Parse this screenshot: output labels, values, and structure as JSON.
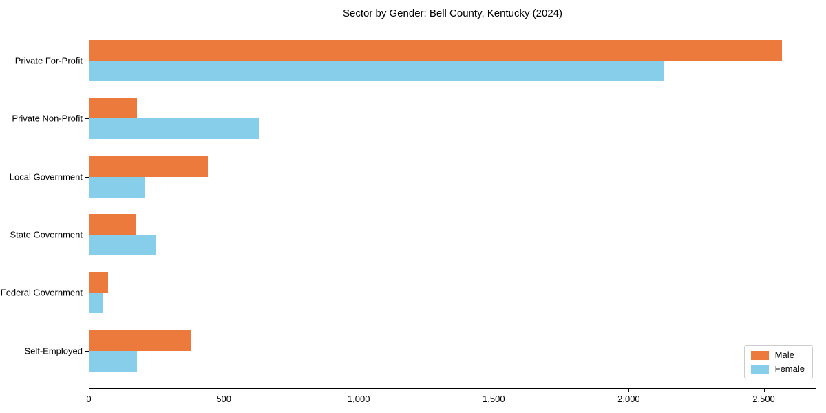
{
  "title": "Sector by Gender: Bell County, Kentucky (2024)",
  "chart_data": {
    "type": "bar",
    "orientation": "horizontal",
    "title": "Sector by Gender: Bell County, Kentucky (2024)",
    "categories": [
      "Private For-Profit",
      "Private Non-Profit",
      "Local Government",
      "State Government",
      "Federal Government",
      "Self-Employed"
    ],
    "series": [
      {
        "name": "Male",
        "color": "#ec7a3d",
        "values": [
          2566,
          176,
          439,
          171,
          69,
          378
        ]
      },
      {
        "name": "Female",
        "color": "#87ceeb",
        "values": [
          2127,
          627,
          207,
          247,
          48,
          176
        ]
      }
    ],
    "xlabel": "",
    "ylabel": "",
    "xlim": [
      0,
      2695
    ],
    "xticks": [
      0,
      500,
      1000,
      1500,
      2000,
      2500
    ],
    "xtick_labels": [
      "0",
      "500",
      "1,000",
      "1,500",
      "2,000",
      "2,500"
    ],
    "grid": false,
    "legend_position": "lower right",
    "plot_border_color": "#000000",
    "background_color": "#ffffff"
  }
}
